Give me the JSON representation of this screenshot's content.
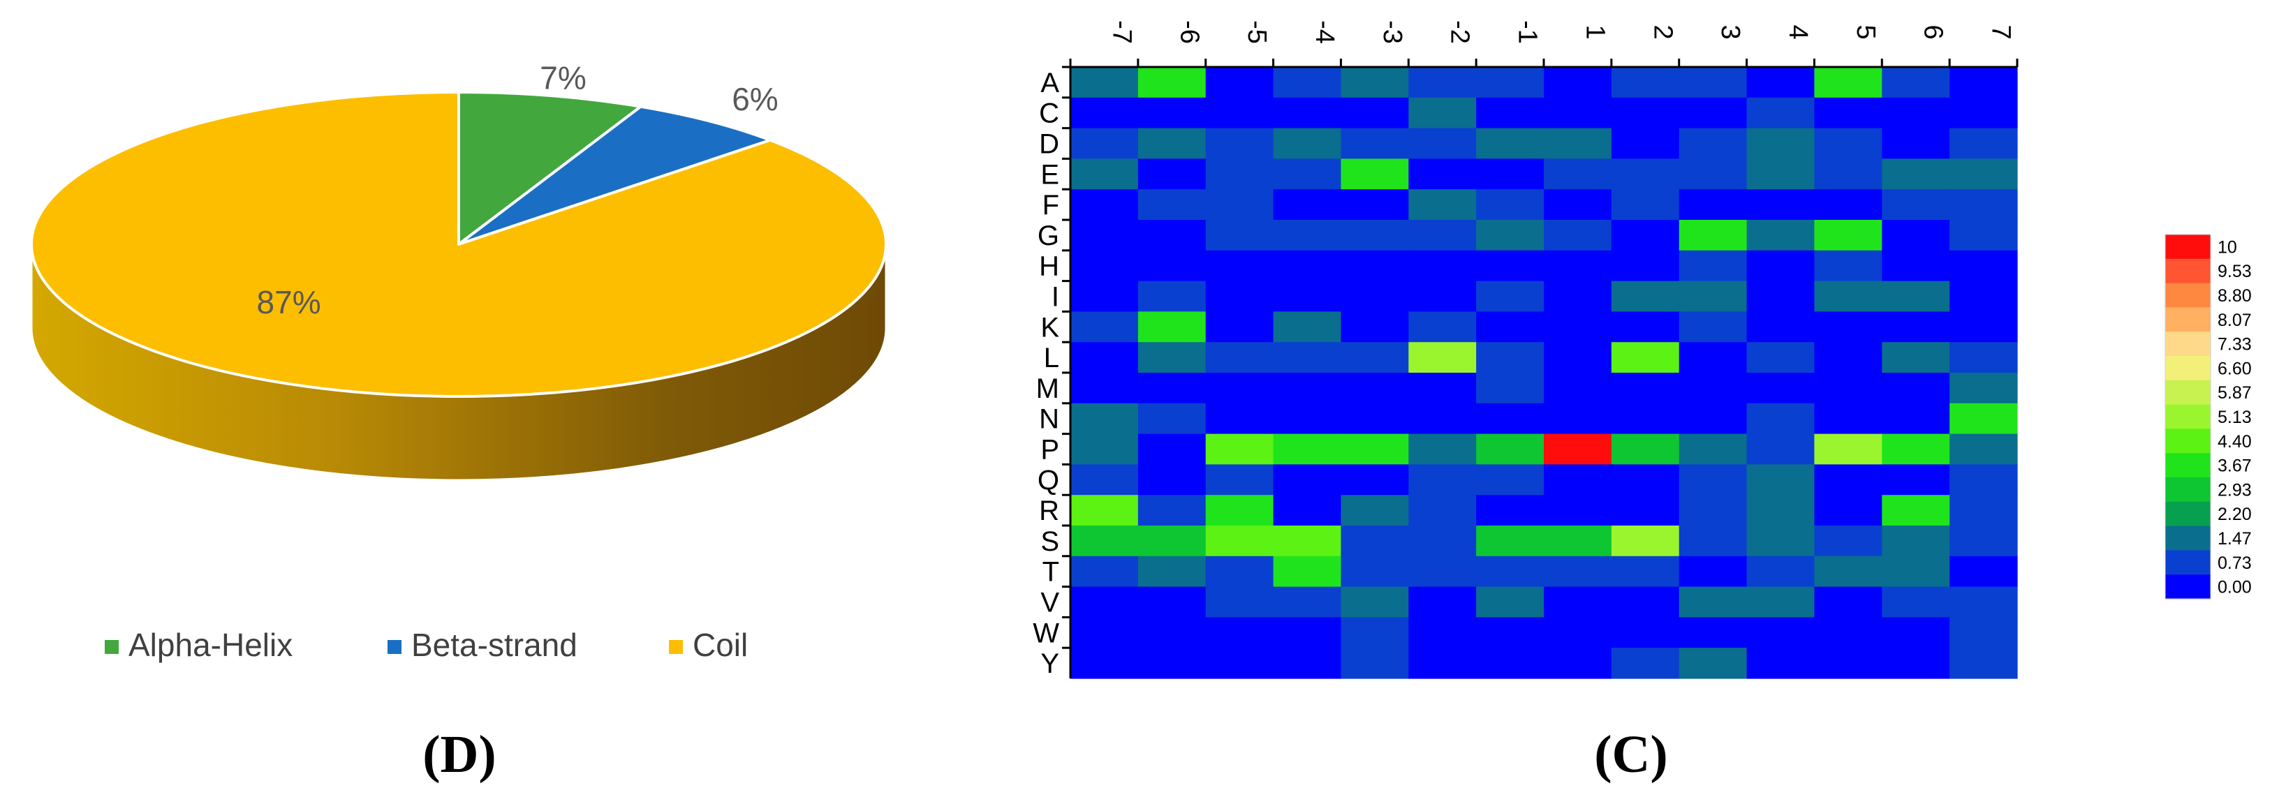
{
  "panel_labels": {
    "left": "(D)",
    "right": "(C)"
  },
  "chart_data": [
    {
      "type": "pie",
      "style": "3d",
      "title": "",
      "categories": [
        "Alpha-Helix",
        "Beta-strand",
        "Coil"
      ],
      "values": [
        7,
        6,
        87
      ],
      "labels": [
        "7%",
        "6%",
        "87%"
      ],
      "colors": [
        "#42A83E",
        "#1A6FC4",
        "#FDBE00"
      ],
      "legend": {
        "position": "bottom",
        "entries": [
          "Alpha-Helix",
          "Beta-strand",
          "Coil"
        ]
      }
    },
    {
      "type": "heatmap",
      "title": "",
      "x": [
        "-7",
        "-6",
        "-5",
        "-4",
        "-3",
        "-2",
        "-1",
        "1",
        "2",
        "3",
        "4",
        "5",
        "6",
        "7"
      ],
      "y": [
        "A",
        "C",
        "D",
        "E",
        "F",
        "G",
        "H",
        "I",
        "K",
        "L",
        "M",
        "N",
        "P",
        "Q",
        "R",
        "S",
        "T",
        "V",
        "W",
        "Y"
      ],
      "values": [
        [
          1.47,
          3.67,
          0.0,
          0.73,
          1.47,
          0.73,
          0.73,
          0.0,
          0.73,
          0.73,
          0.0,
          3.67,
          0.73,
          0.0
        ],
        [
          0.0,
          0.0,
          0.0,
          0.0,
          0.0,
          1.47,
          0.0,
          0.0,
          0.0,
          0.0,
          0.73,
          0.0,
          0.0,
          0.0
        ],
        [
          0.73,
          1.47,
          0.73,
          1.47,
          0.73,
          0.73,
          1.47,
          1.47,
          0.0,
          0.73,
          1.47,
          0.73,
          0.0,
          0.73
        ],
        [
          1.47,
          0.0,
          0.73,
          0.73,
          3.67,
          0.0,
          0.0,
          0.73,
          0.73,
          0.73,
          1.47,
          0.73,
          1.47,
          1.47
        ],
        [
          0.0,
          0.73,
          0.73,
          0.0,
          0.0,
          1.47,
          0.73,
          0.0,
          0.73,
          0.0,
          0.0,
          0.0,
          0.73,
          0.73
        ],
        [
          0.0,
          0.0,
          0.73,
          0.73,
          0.73,
          0.73,
          1.47,
          0.73,
          0.0,
          3.67,
          1.47,
          3.67,
          0.0,
          0.73
        ],
        [
          0.0,
          0.0,
          0.0,
          0.0,
          0.0,
          0.0,
          0.0,
          0.0,
          0.0,
          0.73,
          0.0,
          0.73,
          0.0,
          0.0
        ],
        [
          0.0,
          0.73,
          0.0,
          0.0,
          0.0,
          0.0,
          0.73,
          0.0,
          1.47,
          1.47,
          0.0,
          1.47,
          1.47,
          0.0
        ],
        [
          0.73,
          3.67,
          0.0,
          1.47,
          0.0,
          0.73,
          0.0,
          0.0,
          0.0,
          0.73,
          0.0,
          0.0,
          0.0,
          0.0
        ],
        [
          0.0,
          1.47,
          0.73,
          0.73,
          0.73,
          5.13,
          0.73,
          0.0,
          4.4,
          0.0,
          0.73,
          0.0,
          1.47,
          0.73
        ],
        [
          0.0,
          0.0,
          0.0,
          0.0,
          0.0,
          0.0,
          0.73,
          0.0,
          0.0,
          0.0,
          0.0,
          0.0,
          0.0,
          1.47
        ],
        [
          1.47,
          0.73,
          0.0,
          0.0,
          0.0,
          0.0,
          0.0,
          0.0,
          0.0,
          0.0,
          0.73,
          0.0,
          0.0,
          3.67
        ],
        [
          1.47,
          0.0,
          4.4,
          3.67,
          3.67,
          1.47,
          2.93,
          10.0,
          2.93,
          1.47,
          0.73,
          5.13,
          3.67,
          1.47
        ],
        [
          0.73,
          0.0,
          0.73,
          0.0,
          0.0,
          0.73,
          0.73,
          0.0,
          0.0,
          0.73,
          1.47,
          0.0,
          0.0,
          0.73
        ],
        [
          4.4,
          0.73,
          3.67,
          0.0,
          1.47,
          0.73,
          0.0,
          0.0,
          0.0,
          0.73,
          1.47,
          0.0,
          3.67,
          0.73
        ],
        [
          2.93,
          2.93,
          4.4,
          4.4,
          0.73,
          0.73,
          2.93,
          2.93,
          5.13,
          0.73,
          1.47,
          0.73,
          1.47,
          0.73
        ],
        [
          0.73,
          1.47,
          0.73,
          3.67,
          0.73,
          0.73,
          0.73,
          0.73,
          0.73,
          0.0,
          0.73,
          1.47,
          1.47,
          0.0
        ],
        [
          0.0,
          0.0,
          0.73,
          0.73,
          1.47,
          0.0,
          1.47,
          0.0,
          0.0,
          1.47,
          1.47,
          0.0,
          0.73,
          0.73
        ],
        [
          0.0,
          0.0,
          0.0,
          0.0,
          0.73,
          0.0,
          0.0,
          0.0,
          0.0,
          0.0,
          0.0,
          0.0,
          0.0,
          0.73
        ],
        [
          0.0,
          0.0,
          0.0,
          0.0,
          0.73,
          0.0,
          0.0,
          0.0,
          0.73,
          1.47,
          0.0,
          0.0,
          0.0,
          0.73
        ]
      ],
      "colorbar": {
        "ticks": [
          "10",
          "9.53",
          "8.80",
          "8.07",
          "7.33",
          "6.60",
          "5.87",
          "5.13",
          "4.40",
          "3.67",
          "2.93",
          "2.20",
          "1.47",
          "0.73",
          "0.00"
        ],
        "colors": [
          "#FF0D0D",
          "#FF5533",
          "#FF8840",
          "#FFB060",
          "#FFD98A",
          "#F2F078",
          "#C8F250",
          "#9AF52E",
          "#5CF213",
          "#20E41B",
          "#0DC631",
          "#06A04E",
          "#0A6E8E",
          "#0A40D0",
          "#0000FF"
        ]
      }
    }
  ]
}
